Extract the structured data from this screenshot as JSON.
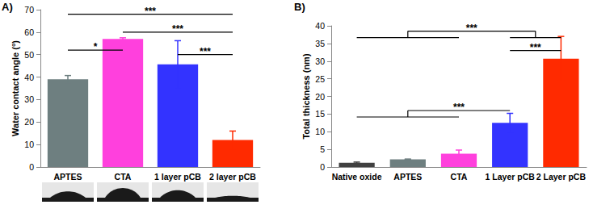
{
  "chart_data": [
    {
      "type": "bar",
      "panel_label": "A)",
      "ylabel": "Water contact angle (°)",
      "categories": [
        "APTES",
        "CTA",
        "1 layer pCB",
        "2 layer pCB"
      ],
      "values": [
        39,
        57,
        45.7,
        12
      ],
      "errors": [
        1.7,
        0.5,
        10.5,
        4
      ],
      "colors": [
        "#6e7f80",
        "#ff40dd",
        "#3333ff",
        "#ff2a00"
      ],
      "ylim": [
        0,
        70
      ],
      "yticks": [
        0,
        10,
        20,
        30,
        40,
        50,
        60,
        70
      ],
      "grid": false,
      "significance": [
        {
          "from": [
            "APTES"
          ],
          "to": [
            "2 layer pCB"
          ],
          "y": 68,
          "label": "***"
        },
        {
          "from": [
            "APTES"
          ],
          "to": [
            "CTA"
          ],
          "y": 52,
          "label": "*"
        },
        {
          "from": [
            "CTA"
          ],
          "to": [
            "2 layer pCB"
          ],
          "y": 60,
          "label": "***"
        },
        {
          "from": [
            "1 layer pCB"
          ],
          "to": [
            "2 layer pCB"
          ],
          "y": 50,
          "label": "***"
        }
      ]
    },
    {
      "type": "bar",
      "panel_label": "B)",
      "ylabel": "Total thickness (nm)",
      "categories": [
        "Native oxide",
        "APTES",
        "CTA",
        "1 Layer pCB",
        "2 Layer pCB"
      ],
      "values": [
        1.2,
        2.2,
        3.8,
        12.5,
        30.7
      ],
      "errors": [
        0.2,
        0.05,
        1,
        2.7,
        6.3
      ],
      "colors": [
        "#404040",
        "#6e7f80",
        "#ff40dd",
        "#3333ff",
        "#ff2a00"
      ],
      "ylim": [
        0,
        40
      ],
      "yticks": [
        0,
        5,
        10,
        15,
        20,
        25,
        30,
        35,
        40
      ],
      "grid": false,
      "significance": [
        {
          "from": [
            "Native oxide",
            "APTES",
            "CTA"
          ],
          "to": [
            "1 Layer pCB",
            "2 Layer pCB"
          ],
          "y": 38.5,
          "label": "***"
        },
        {
          "from": [
            "1 Layer pCB"
          ],
          "to": [
            "2 Layer pCB"
          ],
          "y": 33,
          "label": "***"
        },
        {
          "from": [
            "Native oxide",
            "APTES",
            "CTA"
          ],
          "to": [
            "1 Layer pCB"
          ],
          "y": 16,
          "label": "***"
        }
      ]
    }
  ]
}
